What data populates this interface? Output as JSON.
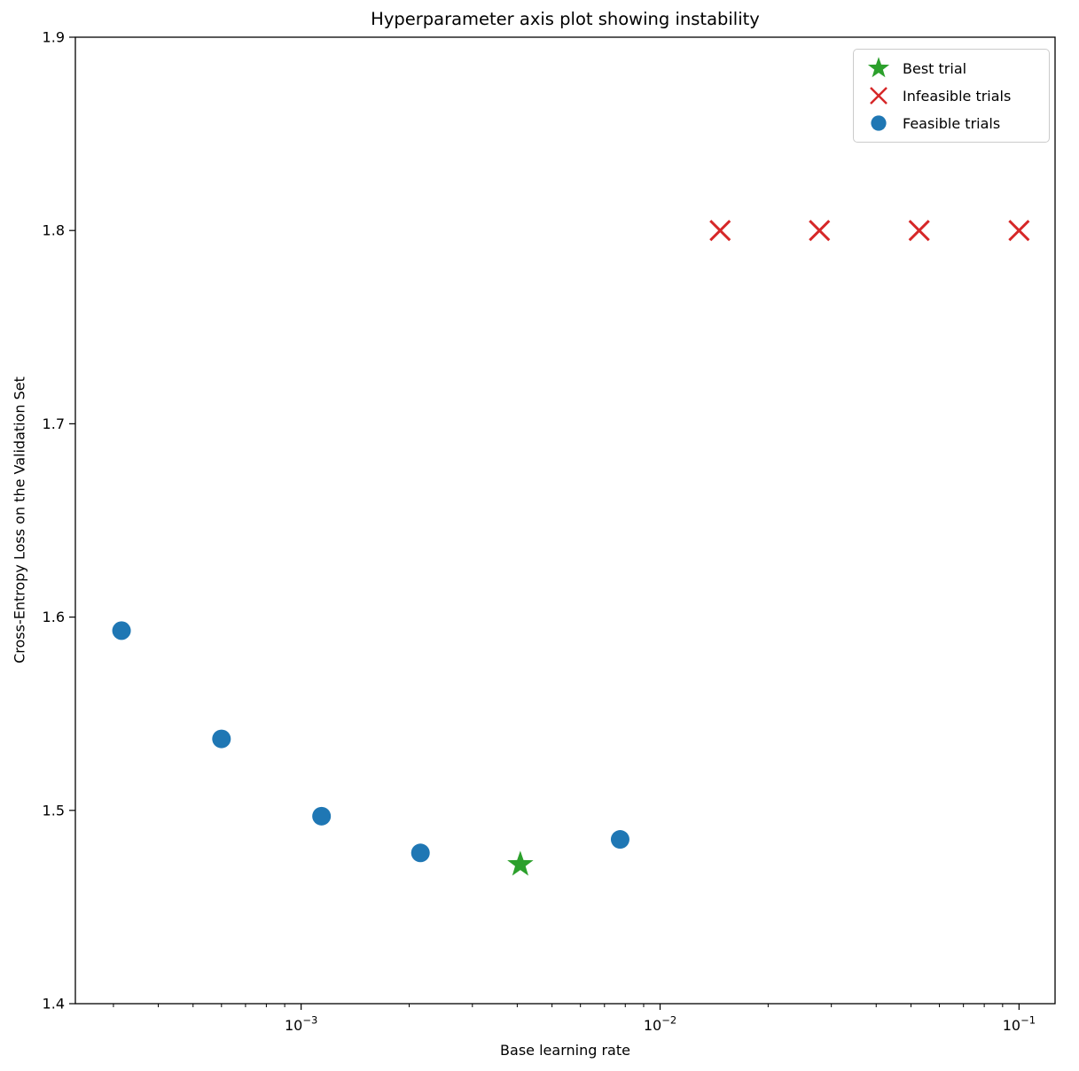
{
  "figure": {
    "title": "Hyperparameter axis plot showing instability"
  },
  "chart_data": {
    "type": "scatter",
    "title": "Hyperparameter axis plot showing instability",
    "xlabel": "Base learning rate",
    "ylabel": "Cross-Entropy Loss on the Validation Set",
    "x_scale": "log",
    "y_scale": "linear",
    "xlim": [
      0.000235,
      0.126
    ],
    "ylim": [
      1.4,
      1.9
    ],
    "x_ticks": [
      0.001,
      0.01,
      0.1
    ],
    "x_tick_labels": [
      "10^-3",
      "10^-2",
      "10^-1"
    ],
    "y_ticks": [
      1.4,
      1.5,
      1.6,
      1.7,
      1.8,
      1.9
    ],
    "grid": false,
    "legend_position": "upper right",
    "series": [
      {
        "name": "Best trial",
        "marker": "star",
        "color": "#2ca02c",
        "points": [
          [
            0.00408,
            1.472
          ]
        ]
      },
      {
        "name": "Infeasible trials",
        "marker": "x",
        "color": "#d62728",
        "points": [
          [
            0.0147,
            1.8
          ],
          [
            0.0278,
            1.8
          ],
          [
            0.0527,
            1.8
          ],
          [
            0.1,
            1.8
          ]
        ]
      },
      {
        "name": "Feasible trials",
        "marker": "circle",
        "color": "#1f77b4",
        "points": [
          [
            0.000316,
            1.593
          ],
          [
            0.0006,
            1.537
          ],
          [
            0.00114,
            1.497
          ],
          [
            0.00215,
            1.478
          ],
          [
            0.00774,
            1.485
          ]
        ]
      }
    ]
  }
}
